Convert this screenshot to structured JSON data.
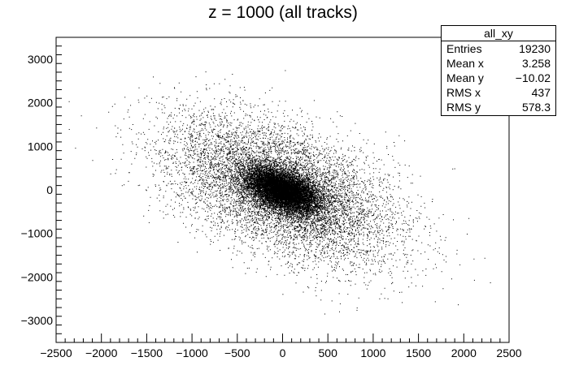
{
  "chart_data": {
    "type": "scatter",
    "title": "z = 1000 (all tracks)",
    "xlabel": "",
    "ylabel": "",
    "xlim": [
      -2500,
      2500
    ],
    "ylim": [
      -3500,
      3500
    ],
    "x_ticks": [
      -2500,
      -2000,
      -1500,
      -1000,
      -500,
      0,
      500,
      1000,
      1500,
      2000,
      2500
    ],
    "y_ticks": [
      -3000,
      -2000,
      -1000,
      0,
      1000,
      2000,
      3000
    ],
    "grid": false,
    "marker_color": "#000000",
    "distribution": {
      "entries": 19230,
      "mean_x": 3.258,
      "mean_y": -10.02,
      "rms_x": 437,
      "rms_y": 578.3,
      "correlation": -0.5
    }
  },
  "stats_box": {
    "title": "all_xy",
    "rows": [
      {
        "label": "Entries",
        "value": "19230"
      },
      {
        "label": "Mean x",
        "value": "3.258"
      },
      {
        "label": "Mean y",
        "value": "−10.02"
      },
      {
        "label": "RMS x",
        "value": "437"
      },
      {
        "label": "RMS y",
        "value": "578.3"
      }
    ]
  }
}
